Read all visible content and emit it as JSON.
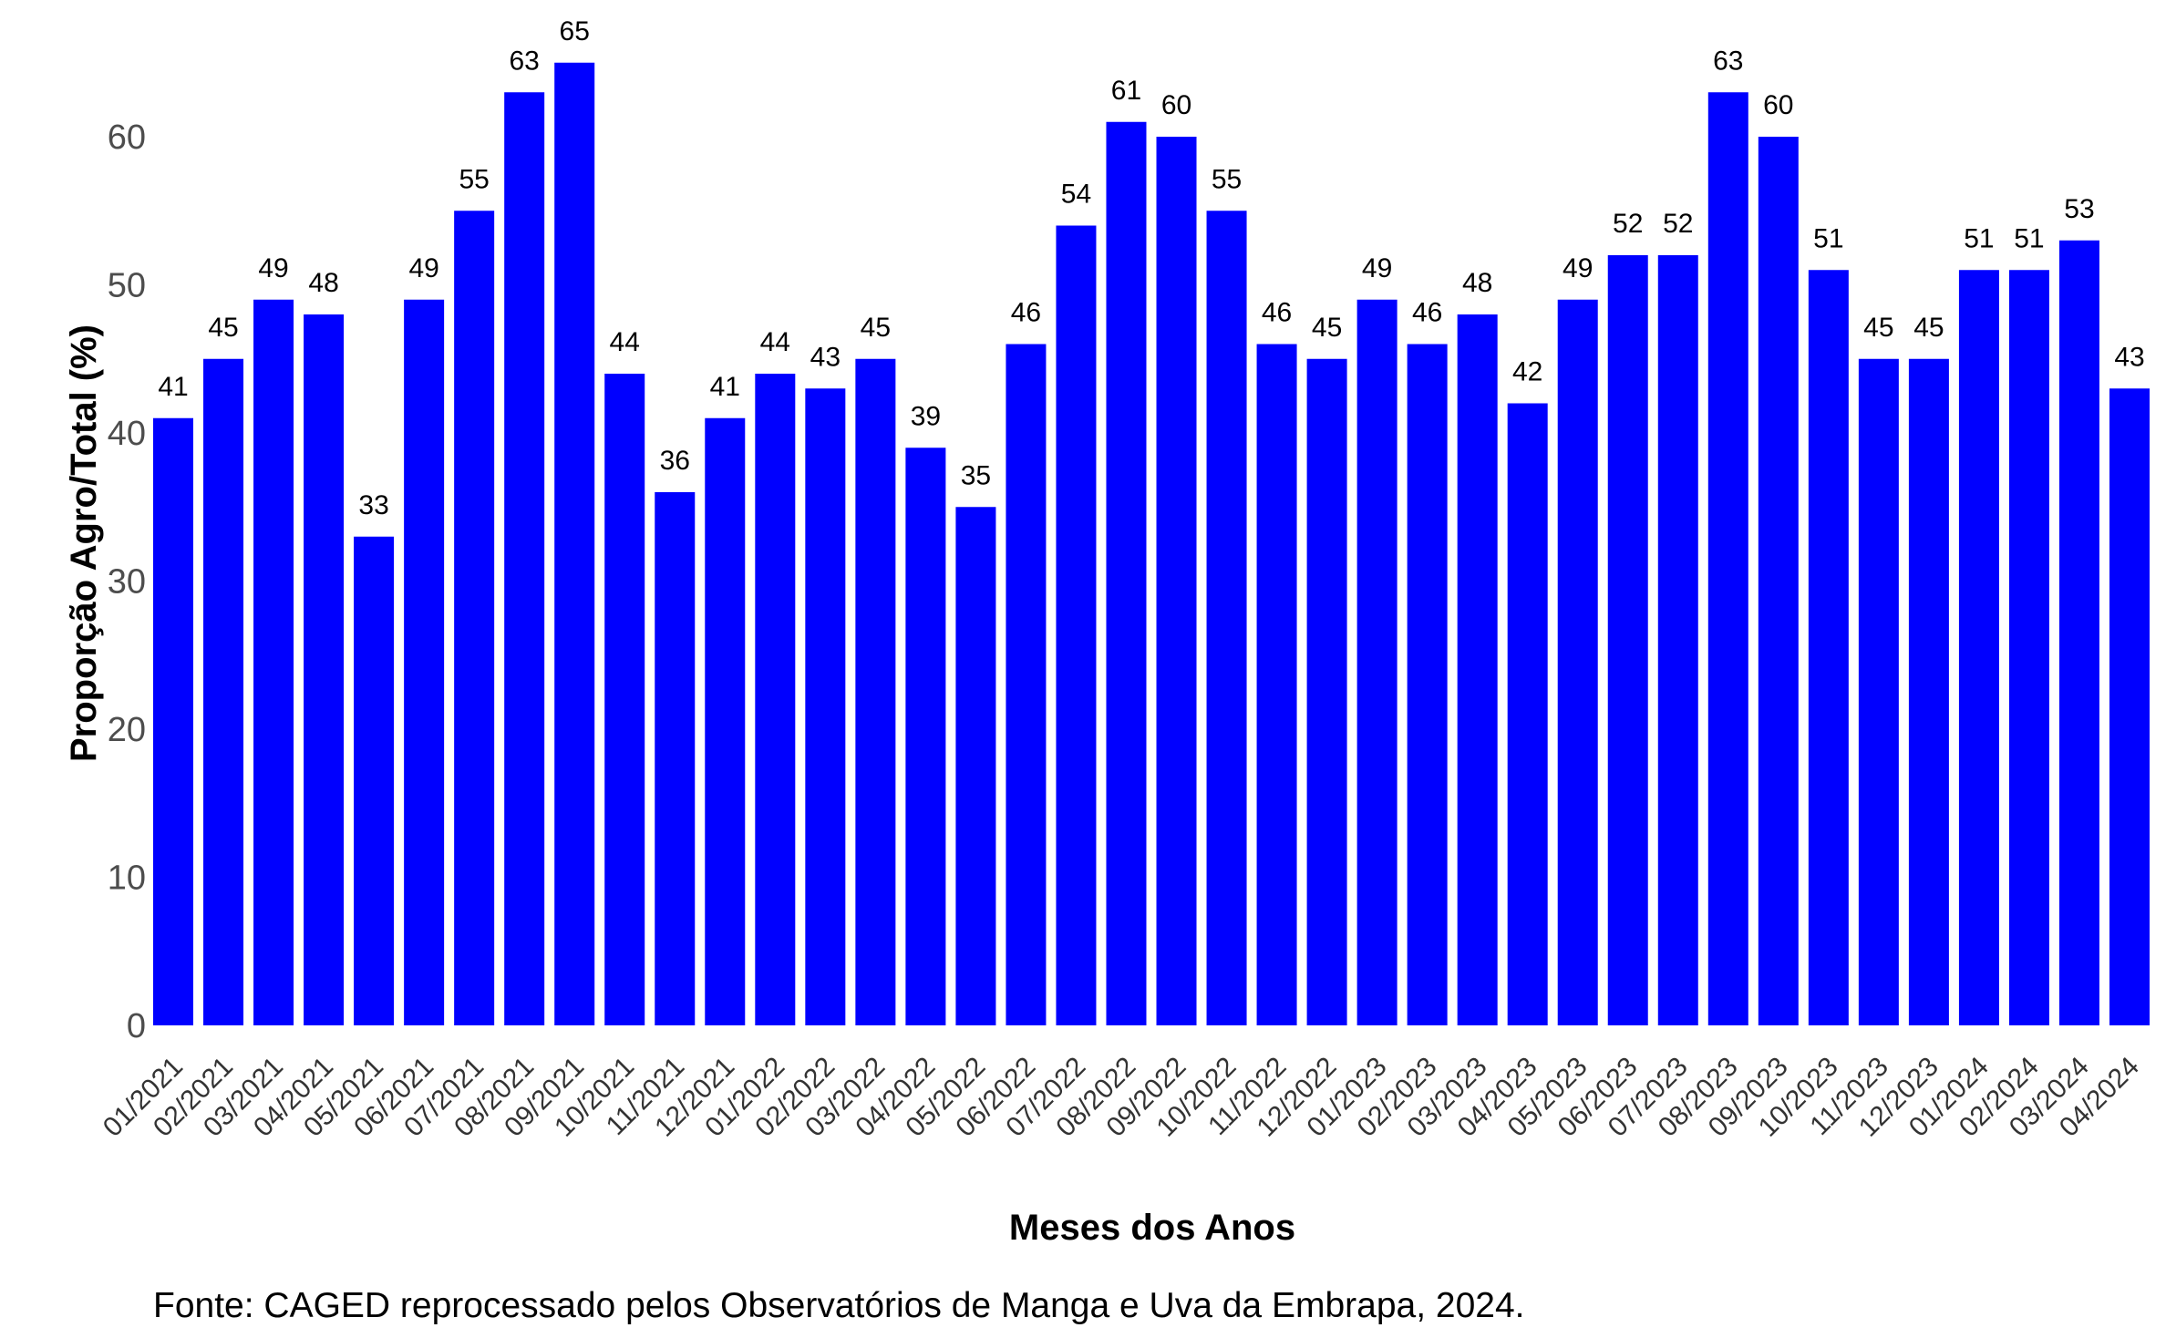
{
  "chart_data": {
    "type": "bar",
    "categories": [
      "01/2021",
      "02/2021",
      "03/2021",
      "04/2021",
      "05/2021",
      "06/2021",
      "07/2021",
      "08/2021",
      "09/2021",
      "10/2021",
      "11/2021",
      "12/2021",
      "01/2022",
      "02/2022",
      "03/2022",
      "04/2022",
      "05/2022",
      "06/2022",
      "07/2022",
      "08/2022",
      "09/2022",
      "10/2022",
      "11/2022",
      "12/2022",
      "01/2023",
      "02/2023",
      "03/2023",
      "04/2023",
      "05/2023",
      "06/2023",
      "07/2023",
      "08/2023",
      "09/2023",
      "10/2023",
      "11/2023",
      "12/2023",
      "01/2024",
      "02/2024",
      "03/2024",
      "04/2024"
    ],
    "values": [
      41,
      45,
      49,
      48,
      33,
      49,
      55,
      63,
      65,
      44,
      36,
      41,
      44,
      43,
      45,
      39,
      35,
      46,
      54,
      61,
      60,
      55,
      46,
      45,
      49,
      46,
      48,
      42,
      49,
      52,
      52,
      63,
      60,
      51,
      45,
      45,
      51,
      51,
      53,
      43
    ],
    "data_labels": [
      "41",
      "45",
      "49",
      "48",
      "33",
      "49",
      "55",
      "63",
      "65",
      "44",
      "36",
      "41",
      "44",
      "43",
      "45",
      "39",
      "35",
      "46",
      "54",
      "61",
      "60",
      "55",
      "46",
      "45",
      "49",
      "46",
      "48",
      "42",
      "49",
      "52",
      "52",
      "63",
      "60",
      "51",
      "45",
      "45",
      "51",
      "51",
      "53",
      "43"
    ],
    "y_ticks": [
      0,
      10,
      20,
      30,
      40,
      50,
      60
    ],
    "y_tick_labels": [
      "0",
      "10",
      "20",
      "30",
      "40",
      "50",
      "60"
    ],
    "ylim": [
      0,
      68
    ],
    "xlabel": "Meses dos Anos",
    "ylabel": "Proporção Agro/Total (%)",
    "caption": "Fonte: CAGED reprocessado pelos Observatórios de Manga e Uva da Embrapa, 2024.",
    "grid": false,
    "legend": "none",
    "bar_color": "#0000ff"
  }
}
